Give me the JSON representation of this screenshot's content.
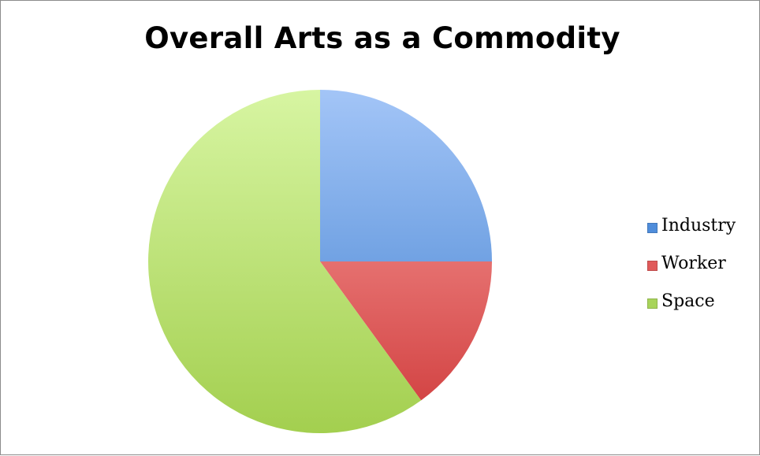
{
  "chart_data": {
    "type": "pie",
    "title": "Overall Arts as a Commodity",
    "categories": [
      "Industry",
      "Worker",
      "Space"
    ],
    "values": [
      25,
      15,
      60
    ],
    "colors": {
      "Industry": [
        "#a3c5f7",
        "#3f7fcf"
      ],
      "Worker": [
        "#fca5a3",
        "#cf3b3b"
      ],
      "Space": [
        "#d7f5a2",
        "#a3cf4f"
      ]
    },
    "start_angle_deg": 0,
    "direction": "clockwise",
    "legend": {
      "position": "right",
      "items": [
        {
          "label": "Industry",
          "color": "#4f8ddb"
        },
        {
          "label": "Worker",
          "color": "#e05a5a"
        },
        {
          "label": "Space",
          "color": "#a8d45a"
        }
      ]
    }
  }
}
